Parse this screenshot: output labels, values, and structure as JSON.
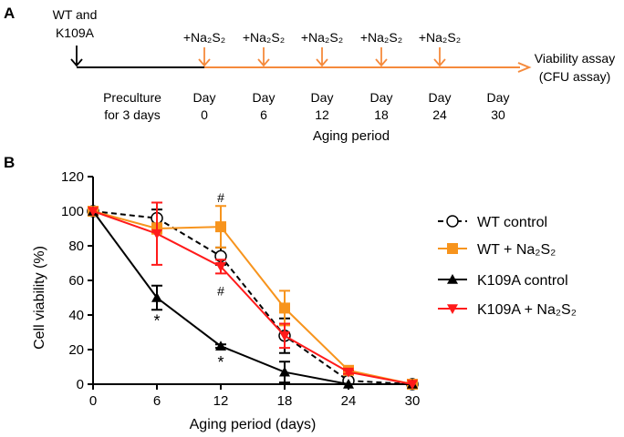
{
  "panel_a": {
    "label": "A",
    "strains": [
      "WT and",
      "K109A"
    ],
    "treatment": "+Na₂S₂",
    "preculture": [
      "Preculture",
      "for 3 days"
    ],
    "days": [
      {
        "word": "Day",
        "num": "0"
      },
      {
        "word": "Day",
        "num": "6"
      },
      {
        "word": "Day",
        "num": "12"
      },
      {
        "word": "Day",
        "num": "18"
      },
      {
        "word": "Day",
        "num": "24"
      },
      {
        "word": "Day",
        "num": "30"
      }
    ],
    "assay": [
      "Viability assay",
      "(CFU assay)"
    ],
    "aging_label": "Aging period",
    "colors": {
      "timeline_pre": "#000000",
      "timeline_aging": "#F58A3C"
    }
  },
  "panel_b": {
    "label": "B"
  },
  "chart_data": {
    "type": "line",
    "xlabel": "Aging period (days)",
    "ylabel": "Cell viability (%)",
    "xlim": [
      0,
      30
    ],
    "ylim": [
      0,
      120
    ],
    "xticks": [
      "0",
      "6",
      "12",
      "18",
      "24",
      "30"
    ],
    "yticks": [
      "0",
      "20",
      "40",
      "60",
      "80",
      "100",
      "120"
    ],
    "x": [
      0,
      6,
      12,
      18,
      24,
      30
    ],
    "grid": false,
    "legend_position": "right",
    "series": [
      {
        "name": "WT control",
        "color": "#000000",
        "marker": "open-circle",
        "dash": true,
        "values": [
          100,
          96,
          74,
          28,
          2,
          0
        ],
        "errors": [
          0,
          5,
          5,
          10,
          1,
          0
        ]
      },
      {
        "name": "WT + Na₂S₂",
        "color": "#F7941D",
        "marker": "square",
        "dash": false,
        "values": [
          100,
          90,
          91,
          44,
          8,
          0
        ],
        "errors": [
          0,
          3,
          12,
          10,
          1,
          0
        ]
      },
      {
        "name": "K109A control",
        "color": "#000000",
        "marker": "triangle-up",
        "dash": false,
        "values": [
          100,
          50,
          22,
          7,
          0,
          0
        ],
        "errors": [
          0,
          7,
          1,
          6,
          0,
          0
        ]
      },
      {
        "name": "K109A + Na₂S₂",
        "color": "#FF1A1A",
        "marker": "triangle-down",
        "dash": false,
        "values": [
          100,
          87,
          68,
          28,
          7,
          0
        ],
        "errors": [
          0,
          18,
          4,
          7,
          1,
          0
        ]
      }
    ],
    "annotations": [
      {
        "text": "#",
        "x": 12,
        "y": 108
      },
      {
        "text": "#",
        "x": 12,
        "y": 54
      },
      {
        "text": "*",
        "x": 6,
        "y": 36
      },
      {
        "text": "*",
        "x": 12,
        "y": 12
      }
    ]
  }
}
